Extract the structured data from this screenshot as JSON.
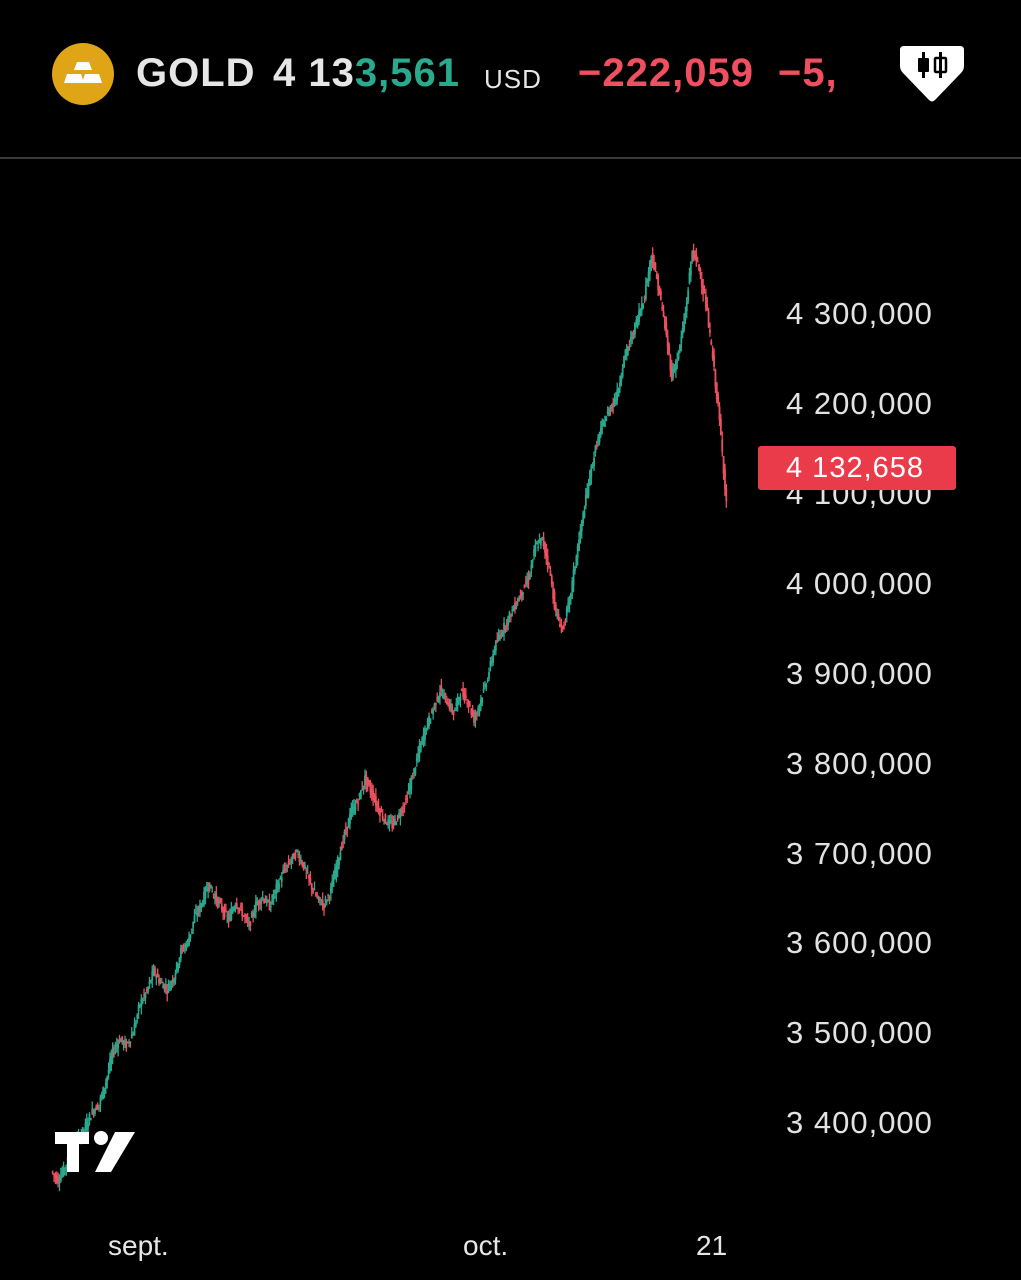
{
  "header": {
    "symbol": "GOLD",
    "price_prefix": "4 13",
    "price_suffix": "3,561",
    "currency": "USD",
    "change_abs": "−222,059",
    "change_pct": "−5,",
    "logo_icon": "gold-bars-icon",
    "chart_type_icon": "candlestick-icon"
  },
  "colors": {
    "up": "#2aa98e",
    "down": "#ef4f5f",
    "logo": "#e0a417",
    "last_price_badge": "#ea3b4a"
  },
  "last_price_label": "4 132,658",
  "chart_data": {
    "type": "line",
    "title": "",
    "xlabel": "",
    "ylabel": "",
    "x_tick_labels": [
      "sept.",
      "oct.",
      "21"
    ],
    "y_tick_labels": [
      "4 300,000",
      "4 200,000",
      "4 100,000",
      "4 000,000",
      "3 900,000",
      "3 800,000",
      "3 700,000",
      "3 600,000",
      "3 500,000",
      "3 400,000"
    ],
    "y_ticks": [
      4300,
      4200,
      4100,
      4000,
      3900,
      3800,
      3700,
      3600,
      3500,
      3400
    ],
    "ylim": [
      3320,
      4405
    ],
    "last_price": 4132.658,
    "grid": false,
    "series": [
      {
        "values": [
          3345,
          3335,
          3350,
          3368,
          3382,
          3395,
          3412,
          3420,
          3445,
          3478,
          3492,
          3485,
          3500,
          3532,
          3545,
          3568,
          3555,
          3548,
          3562,
          3590,
          3600,
          3628,
          3642,
          3665,
          3650,
          3638,
          3625,
          3645,
          3632,
          3618,
          3642,
          3650,
          3640,
          3660,
          3678,
          3690,
          3700,
          3685,
          3665,
          3648,
          3642,
          3658,
          3690,
          3720,
          3745,
          3758,
          3782,
          3766,
          3748,
          3735,
          3730,
          3742,
          3758,
          3785,
          3815,
          3840,
          3860,
          3880,
          3868,
          3855,
          3878,
          3870,
          3848,
          3870,
          3895,
          3928,
          3945,
          3960,
          3975,
          3990,
          4005,
          4040,
          4048,
          4018,
          3965,
          3948,
          3980,
          4030,
          4075,
          4120,
          4155,
          4178,
          4195,
          4210,
          4250,
          4270,
          4295,
          4320,
          4365,
          4330,
          4285,
          4230,
          4255,
          4300,
          4370,
          4350,
          4310,
          4250,
          4180,
          4090
        ]
      }
    ]
  }
}
